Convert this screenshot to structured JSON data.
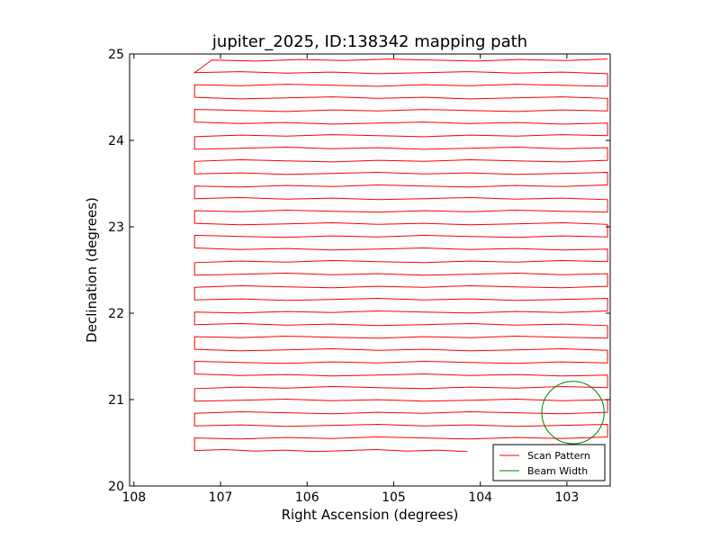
{
  "chart_data": {
    "type": "line",
    "title": "jupiter_2025, ID:138342 mapping path",
    "xlabel": "Right Ascension (degrees)",
    "ylabel": "Declination (degrees)",
    "xlim": [
      108.05,
      102.5
    ],
    "ylim": [
      20,
      25
    ],
    "x_inverted": true,
    "xticks": [
      108,
      107,
      106,
      105,
      104,
      103
    ],
    "yticks": [
      20,
      21,
      22,
      23,
      24,
      25
    ],
    "grid": false,
    "legend_position": "lower-right",
    "colors": {
      "scan": "#ff0000",
      "beam": "#008000"
    },
    "series": [
      {
        "name": "Scan Pattern",
        "kind": "raster-path",
        "dec_start": 20.41,
        "dec_end": 24.93,
        "rows": 32,
        "ra_left": 107.3,
        "ra_right": 102.53,
        "ra_end": 104.15
      },
      {
        "name": "Beam Width",
        "kind": "circle",
        "center": [
          102.93,
          20.85
        ],
        "radius": 0.36
      }
    ]
  }
}
